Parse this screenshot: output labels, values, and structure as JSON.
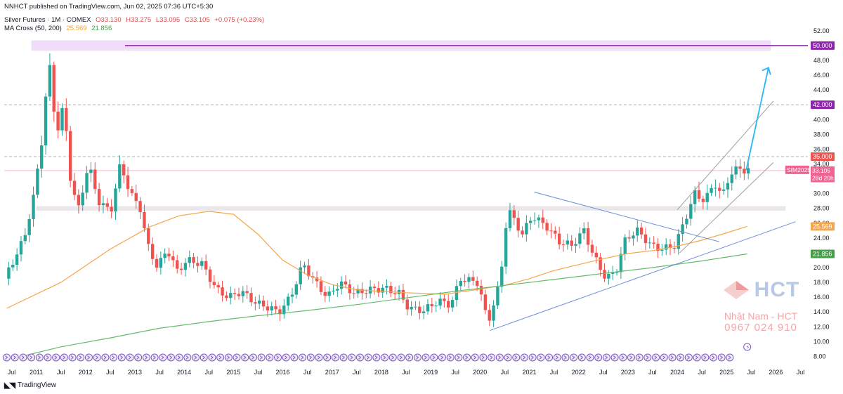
{
  "header": {
    "published": "NNHCT published on TradingView.com, Jun 02, 2025 07:36 UTC+5:30",
    "symbol": "Silver Futures · 1M · COMEX",
    "ohlc": {
      "o": "O33.130",
      "h": "H33.275",
      "l": "L33.095",
      "c": "C33.105",
      "chg": "+0.075 (+0.23%)"
    },
    "ma_name": "MA Cross (50, 200)",
    "ma50": "25.569",
    "ma200": "21.856"
  },
  "footer": {
    "logo": "TradingView"
  },
  "watermark": {
    "brand": "HCT",
    "name": "Nhật Nam - HCT",
    "phone": "0967 024 910"
  },
  "colors": {
    "up": "#26a69a",
    "down": "#ef5350",
    "ma50": "#f5a54a",
    "ma200": "#66bb6a",
    "trend": "#6b8fd6",
    "channel": "#9e9e9e",
    "arrow": "#29b6f6",
    "level_purple": "#8e24aa",
    "current_price": "#f06292"
  },
  "chart_data": {
    "type": "candlestick",
    "title": "Silver Futures · 1M · COMEX",
    "y_axis_ticks": [
      8,
      10,
      12,
      14,
      16,
      18,
      20,
      22,
      24,
      26,
      28,
      30,
      32,
      34,
      36,
      38,
      40,
      42,
      44,
      46,
      48,
      50,
      52
    ],
    "x_axis_labels": [
      {
        "label": "Jul",
        "t": 2010.5
      },
      {
        "label": "2011",
        "t": 2011.0
      },
      {
        "label": "Jul",
        "t": 2011.5
      },
      {
        "label": "2012",
        "t": 2012.0
      },
      {
        "label": "Jul",
        "t": 2012.5
      },
      {
        "label": "2013",
        "t": 2013.0
      },
      {
        "label": "Jul",
        "t": 2013.5
      },
      {
        "label": "2014",
        "t": 2014.0
      },
      {
        "label": "Jul",
        "t": 2014.5
      },
      {
        "label": "2015",
        "t": 2015.0
      },
      {
        "label": "Jul",
        "t": 2015.5
      },
      {
        "label": "2016",
        "t": 2016.0
      },
      {
        "label": "Jul",
        "t": 2016.5
      },
      {
        "label": "2017",
        "t": 2017.0
      },
      {
        "label": "Jul",
        "t": 2017.5
      },
      {
        "label": "2018",
        "t": 2018.0
      },
      {
        "label": "Jul",
        "t": 2018.5
      },
      {
        "label": "2019",
        "t": 2019.0
      },
      {
        "label": "Jul",
        "t": 2019.5
      },
      {
        "label": "2020",
        "t": 2020.0
      },
      {
        "label": "Jul",
        "t": 2020.5
      },
      {
        "label": "2021",
        "t": 2021.0
      },
      {
        "label": "Jul",
        "t": 2021.5
      },
      {
        "label": "2022",
        "t": 2022.0
      },
      {
        "label": "Jul",
        "t": 2022.5
      },
      {
        "label": "2023",
        "t": 2023.0
      },
      {
        "label": "Jul",
        "t": 2023.5
      },
      {
        "label": "2024",
        "t": 2024.0
      },
      {
        "label": "Jul",
        "t": 2024.5
      },
      {
        "label": "2025",
        "t": 2025.0
      },
      {
        "label": "Jul",
        "t": 2025.5
      },
      {
        "label": "2026",
        "t": 2026.0
      },
      {
        "label": "Jul",
        "t": 2026.5
      }
    ],
    "price_path": [
      [
        2010.4,
        18.5
      ],
      [
        2010.8,
        24
      ],
      [
        2011.0,
        30
      ],
      [
        2011.15,
        37
      ],
      [
        2011.3,
        48
      ],
      [
        2011.45,
        38
      ],
      [
        2011.6,
        42
      ],
      [
        2011.75,
        31
      ],
      [
        2011.9,
        28
      ],
      [
        2012.1,
        34
      ],
      [
        2012.3,
        29
      ],
      [
        2012.55,
        27.5
      ],
      [
        2012.75,
        34
      ],
      [
        2012.95,
        30
      ],
      [
        2013.15,
        28
      ],
      [
        2013.3,
        23
      ],
      [
        2013.5,
        20
      ],
      [
        2013.7,
        22.5
      ],
      [
        2013.9,
        19.5
      ],
      [
        2014.1,
        21
      ],
      [
        2014.4,
        20.5
      ],
      [
        2014.7,
        17
      ],
      [
        2014.95,
        16
      ],
      [
        2015.2,
        16.8
      ],
      [
        2015.5,
        15.2
      ],
      [
        2015.8,
        14.5
      ],
      [
        2015.95,
        13.9
      ],
      [
        2016.2,
        16
      ],
      [
        2016.45,
        20.5
      ],
      [
        2016.7,
        18
      ],
      [
        2016.95,
        16
      ],
      [
        2017.2,
        18
      ],
      [
        2017.5,
        16.5
      ],
      [
        2017.8,
        17
      ],
      [
        2018.1,
        17.2
      ],
      [
        2018.4,
        16.5
      ],
      [
        2018.6,
        14.5
      ],
      [
        2018.9,
        14.2
      ],
      [
        2019.2,
        15.5
      ],
      [
        2019.45,
        15
      ],
      [
        2019.65,
        18.5
      ],
      [
        2020.0,
        18
      ],
      [
        2020.2,
        12.5
      ],
      [
        2020.45,
        18
      ],
      [
        2020.6,
        28
      ],
      [
        2020.9,
        24.5
      ],
      [
        2021.1,
        27
      ],
      [
        2021.4,
        25.5
      ],
      [
        2021.65,
        23.5
      ],
      [
        2021.9,
        23
      ],
      [
        2022.15,
        25
      ],
      [
        2022.35,
        21.5
      ],
      [
        2022.6,
        18.5
      ],
      [
        2022.8,
        19.5
      ],
      [
        2023.0,
        24
      ],
      [
        2023.25,
        25
      ],
      [
        2023.5,
        23
      ],
      [
        2023.75,
        22.5
      ],
      [
        2024.0,
        23
      ],
      [
        2024.2,
        26.5
      ],
      [
        2024.4,
        30
      ],
      [
        2024.6,
        29
      ],
      [
        2024.8,
        31.5
      ],
      [
        2024.95,
        29.5
      ],
      [
        2025.1,
        32.5
      ],
      [
        2025.3,
        33.5
      ],
      [
        2025.42,
        33.1
      ]
    ],
    "series": [
      {
        "name": "MA 50",
        "points": [
          [
            2010.4,
            14.5
          ],
          [
            2011.5,
            18
          ],
          [
            2012.5,
            22.5
          ],
          [
            2013.3,
            25.5
          ],
          [
            2013.9,
            27
          ],
          [
            2014.5,
            27.6
          ],
          [
            2015.0,
            27.2
          ],
          [
            2015.5,
            24.5
          ],
          [
            2016.0,
            21
          ],
          [
            2016.5,
            19
          ],
          [
            2017.0,
            17.7
          ],
          [
            2017.5,
            17
          ],
          [
            2018.5,
            16.6
          ],
          [
            2019.3,
            16.4
          ],
          [
            2019.8,
            16.9
          ],
          [
            2020.5,
            17.6
          ],
          [
            2021.0,
            18.5
          ],
          [
            2021.5,
            19.6
          ],
          [
            2022.0,
            20.4
          ],
          [
            2022.5,
            21.2
          ],
          [
            2023.0,
            21.9
          ],
          [
            2023.5,
            22.3
          ],
          [
            2024.0,
            22.9
          ],
          [
            2024.5,
            23.7
          ],
          [
            2025.0,
            24.7
          ],
          [
            2025.42,
            25.569
          ]
        ]
      },
      {
        "name": "MA 200",
        "points": [
          [
            2010.7,
            8
          ],
          [
            2011.5,
            9.3
          ],
          [
            2012.5,
            10.5
          ],
          [
            2013.5,
            11.8
          ],
          [
            2014.5,
            12.7
          ],
          [
            2015.5,
            13.5
          ],
          [
            2016.5,
            14.2
          ],
          [
            2017.5,
            15
          ],
          [
            2018.5,
            15.9
          ],
          [
            2019.5,
            16.8
          ],
          [
            2020.5,
            17.6
          ],
          [
            2021.5,
            18.4
          ],
          [
            2022.5,
            19.2
          ],
          [
            2023.5,
            20
          ],
          [
            2024.5,
            20.9
          ],
          [
            2025.42,
            21.856
          ]
        ]
      }
    ],
    "horizontal_levels": [
      {
        "price": 50.0,
        "label": "50.000",
        "color": "#8e24aa",
        "style": "solid"
      },
      {
        "price": 42.0,
        "label": "42.000",
        "color": "#8e24aa",
        "style": "dashed"
      },
      {
        "price": 35.0,
        "label": "35.000",
        "color": "#ef5350",
        "style": "dashed"
      }
    ],
    "zones": [
      {
        "from": 49.3,
        "to": 50.7,
        "t0": 2010.9,
        "t1": 2025.9
      },
      {
        "from": 27.7,
        "to": 28.3,
        "t0": 2011.0,
        "t1": 2026.2
      }
    ],
    "price_labels": [
      {
        "text": "SIM2025",
        "price": 33.2,
        "side": "left"
      },
      {
        "text": "33.105",
        "price": 33.105
      },
      {
        "text": "28d 20h",
        "price": 32.1
      }
    ],
    "axis_badges": [
      {
        "text": "25.569",
        "price": 25.569,
        "color": "#f5a54a"
      },
      {
        "text": "21.856",
        "price": 21.856,
        "color": "#43a047"
      }
    ],
    "drawings": [
      {
        "kind": "triangle-top",
        "from": [
          2021.1,
          30.2
        ],
        "to": [
          2024.85,
          23.5
        ]
      },
      {
        "kind": "triangle-bottom",
        "from": [
          2020.2,
          11.5
        ],
        "to": [
          2026.4,
          26.2
        ]
      },
      {
        "kind": "channel-upper",
        "from": [
          2024.0,
          27.8
        ],
        "to": [
          2025.95,
          42.5
        ]
      },
      {
        "kind": "channel-lower",
        "from": [
          2024.05,
          22
        ],
        "to": [
          2025.95,
          34.2
        ]
      },
      {
        "kind": "projection-arrow",
        "from": [
          2025.4,
          33.2
        ],
        "to": [
          2025.85,
          47
        ]
      }
    ]
  }
}
